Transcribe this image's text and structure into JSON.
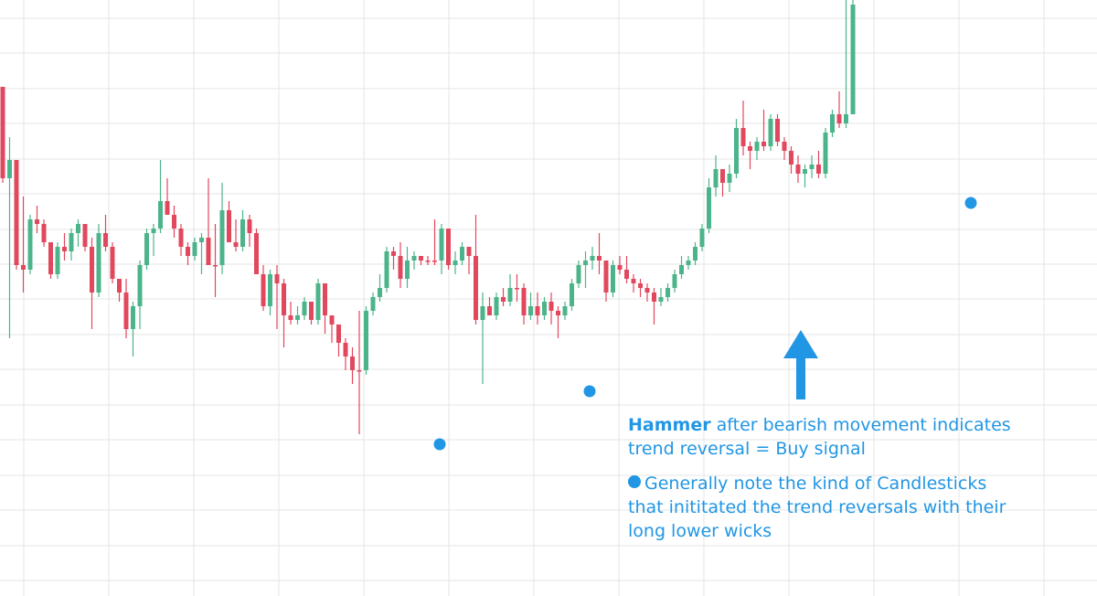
{
  "colors": {
    "bull": "#4cb48a",
    "bear": "#e1485e",
    "accent": "#2196e4",
    "grid": "#e4e4e4"
  },
  "annotation": {
    "hammer_word": "Hammer",
    "hammer_rest_line1": "after bearish movement indicates",
    "hammer_line2": "trend reversal = Buy signal",
    "note_line1": "Generally note the kind of Candlesticks",
    "note_line2": "that inititated the trend reversals with their",
    "note_line3": "long lower wicks"
  },
  "chart_data": {
    "type": "candlestick",
    "grid": true,
    "axes_visible": false,
    "price_range": [
      0,
      652
    ],
    "candles": [
      [
        95,
        105,
        200,
        195
      ],
      [
        195,
        150,
        370,
        175
      ],
      [
        175,
        175,
        295,
        290
      ],
      [
        290,
        215,
        320,
        295
      ],
      [
        295,
        235,
        300,
        240
      ],
      [
        240,
        225,
        255,
        245
      ],
      [
        245,
        240,
        270,
        265
      ],
      [
        265,
        265,
        305,
        300
      ],
      [
        300,
        265,
        305,
        270
      ],
      [
        270,
        255,
        285,
        275
      ],
      [
        275,
        250,
        285,
        255
      ],
      [
        255,
        240,
        270,
        245
      ],
      [
        245,
        245,
        275,
        270
      ],
      [
        270,
        260,
        360,
        320
      ],
      [
        320,
        245,
        325,
        255
      ],
      [
        255,
        235,
        275,
        270
      ],
      [
        270,
        265,
        310,
        305
      ],
      [
        305,
        305,
        330,
        320
      ],
      [
        320,
        305,
        370,
        360
      ],
      [
        360,
        330,
        390,
        335
      ],
      [
        335,
        285,
        360,
        290
      ],
      [
        290,
        250,
        295,
        255
      ],
      [
        255,
        245,
        280,
        250
      ],
      [
        250,
        175,
        255,
        220
      ],
      [
        220,
        195,
        235,
        235
      ],
      [
        235,
        225,
        260,
        250
      ],
      [
        250,
        245,
        280,
        270
      ],
      [
        270,
        265,
        290,
        280
      ],
      [
        280,
        260,
        285,
        265
      ],
      [
        265,
        255,
        300,
        260
      ],
      [
        260,
        195,
        275,
        290
      ],
      [
        290,
        245,
        325,
        290
      ],
      [
        290,
        200,
        300,
        230
      ],
      [
        230,
        220,
        260,
        265
      ],
      [
        265,
        240,
        275,
        270
      ],
      [
        270,
        230,
        275,
        240
      ],
      [
        240,
        235,
        270,
        255
      ],
      [
        255,
        250,
        300,
        300
      ],
      [
        300,
        290,
        340,
        335
      ],
      [
        335,
        295,
        345,
        300
      ],
      [
        300,
        290,
        360,
        310
      ],
      [
        310,
        305,
        380,
        345
      ],
      [
        345,
        330,
        355,
        350
      ],
      [
        350,
        335,
        355,
        345
      ],
      [
        345,
        325,
        350,
        330
      ],
      [
        330,
        330,
        355,
        350
      ],
      [
        350,
        305,
        355,
        310
      ],
      [
        310,
        310,
        365,
        345
      ],
      [
        345,
        345,
        375,
        355
      ],
      [
        355,
        355,
        390,
        375
      ],
      [
        375,
        370,
        405,
        390
      ],
      [
        390,
        380,
        420,
        405
      ],
      [
        405,
        340,
        475,
        405
      ],
      [
        405,
        335,
        410,
        340
      ],
      [
        340,
        320,
        345,
        325
      ],
      [
        325,
        300,
        330,
        315
      ],
      [
        315,
        270,
        320,
        275
      ],
      [
        275,
        270,
        295,
        280
      ],
      [
        280,
        265,
        315,
        305
      ],
      [
        305,
        270,
        315,
        285
      ],
      [
        285,
        275,
        295,
        280
      ],
      [
        280,
        280,
        290,
        285
      ],
      [
        285,
        280,
        290,
        285
      ],
      [
        285,
        240,
        290,
        285
      ],
      [
        285,
        245,
        300,
        250
      ],
      [
        250,
        250,
        295,
        290
      ],
      [
        290,
        275,
        300,
        285
      ],
      [
        285,
        265,
        290,
        270
      ],
      [
        270,
        270,
        300,
        280
      ],
      [
        280,
        235,
        355,
        350
      ],
      [
        350,
        320,
        420,
        335
      ],
      [
        335,
        325,
        345,
        345
      ],
      [
        345,
        320,
        350,
        325
      ],
      [
        325,
        315,
        335,
        330
      ],
      [
        330,
        300,
        335,
        315
      ],
      [
        315,
        300,
        330,
        315
      ],
      [
        315,
        310,
        355,
        345
      ],
      [
        345,
        320,
        350,
        335
      ],
      [
        335,
        320,
        355,
        345
      ],
      [
        345,
        325,
        350,
        330
      ],
      [
        330,
        320,
        355,
        340
      ],
      [
        340,
        335,
        370,
        345
      ],
      [
        345,
        330,
        350,
        335
      ],
      [
        335,
        305,
        340,
        310
      ],
      [
        310,
        285,
        315,
        290
      ],
      [
        290,
        275,
        315,
        285
      ],
      [
        285,
        270,
        295,
        280
      ],
      [
        280,
        255,
        300,
        285
      ],
      [
        285,
        285,
        330,
        320
      ],
      [
        320,
        285,
        325,
        290
      ],
      [
        290,
        280,
        300,
        295
      ],
      [
        295,
        280,
        310,
        305
      ],
      [
        305,
        300,
        320,
        310
      ],
      [
        310,
        305,
        325,
        315
      ],
      [
        315,
        310,
        330,
        320
      ],
      [
        320,
        315,
        355,
        330
      ],
      [
        330,
        315,
        335,
        325
      ],
      [
        325,
        310,
        330,
        315
      ],
      [
        315,
        295,
        320,
        300
      ],
      [
        300,
        280,
        305,
        290
      ],
      [
        290,
        280,
        295,
        285
      ],
      [
        285,
        265,
        290,
        270
      ],
      [
        270,
        245,
        275,
        250
      ],
      [
        250,
        195,
        255,
        205
      ],
      [
        205,
        170,
        215,
        185
      ],
      [
        185,
        185,
        215,
        200
      ],
      [
        200,
        180,
        210,
        190
      ],
      [
        190,
        130,
        195,
        140
      ],
      [
        140,
        110,
        170,
        160
      ],
      [
        160,
        155,
        185,
        165
      ],
      [
        165,
        150,
        175,
        155
      ],
      [
        155,
        120,
        165,
        160
      ],
      [
        160,
        125,
        165,
        130
      ],
      [
        130,
        125,
        160,
        155
      ],
      [
        155,
        150,
        175,
        165
      ],
      [
        165,
        160,
        190,
        180
      ],
      [
        180,
        170,
        200,
        190
      ],
      [
        190,
        180,
        205,
        185
      ],
      [
        185,
        170,
        195,
        180
      ],
      [
        180,
        165,
        195,
        190
      ],
      [
        190,
        140,
        195,
        145
      ],
      [
        145,
        120,
        150,
        125
      ],
      [
        125,
        100,
        140,
        135
      ],
      [
        135,
        0,
        140,
        125
      ],
      [
        125,
        0,
        10,
        5
      ]
    ]
  }
}
